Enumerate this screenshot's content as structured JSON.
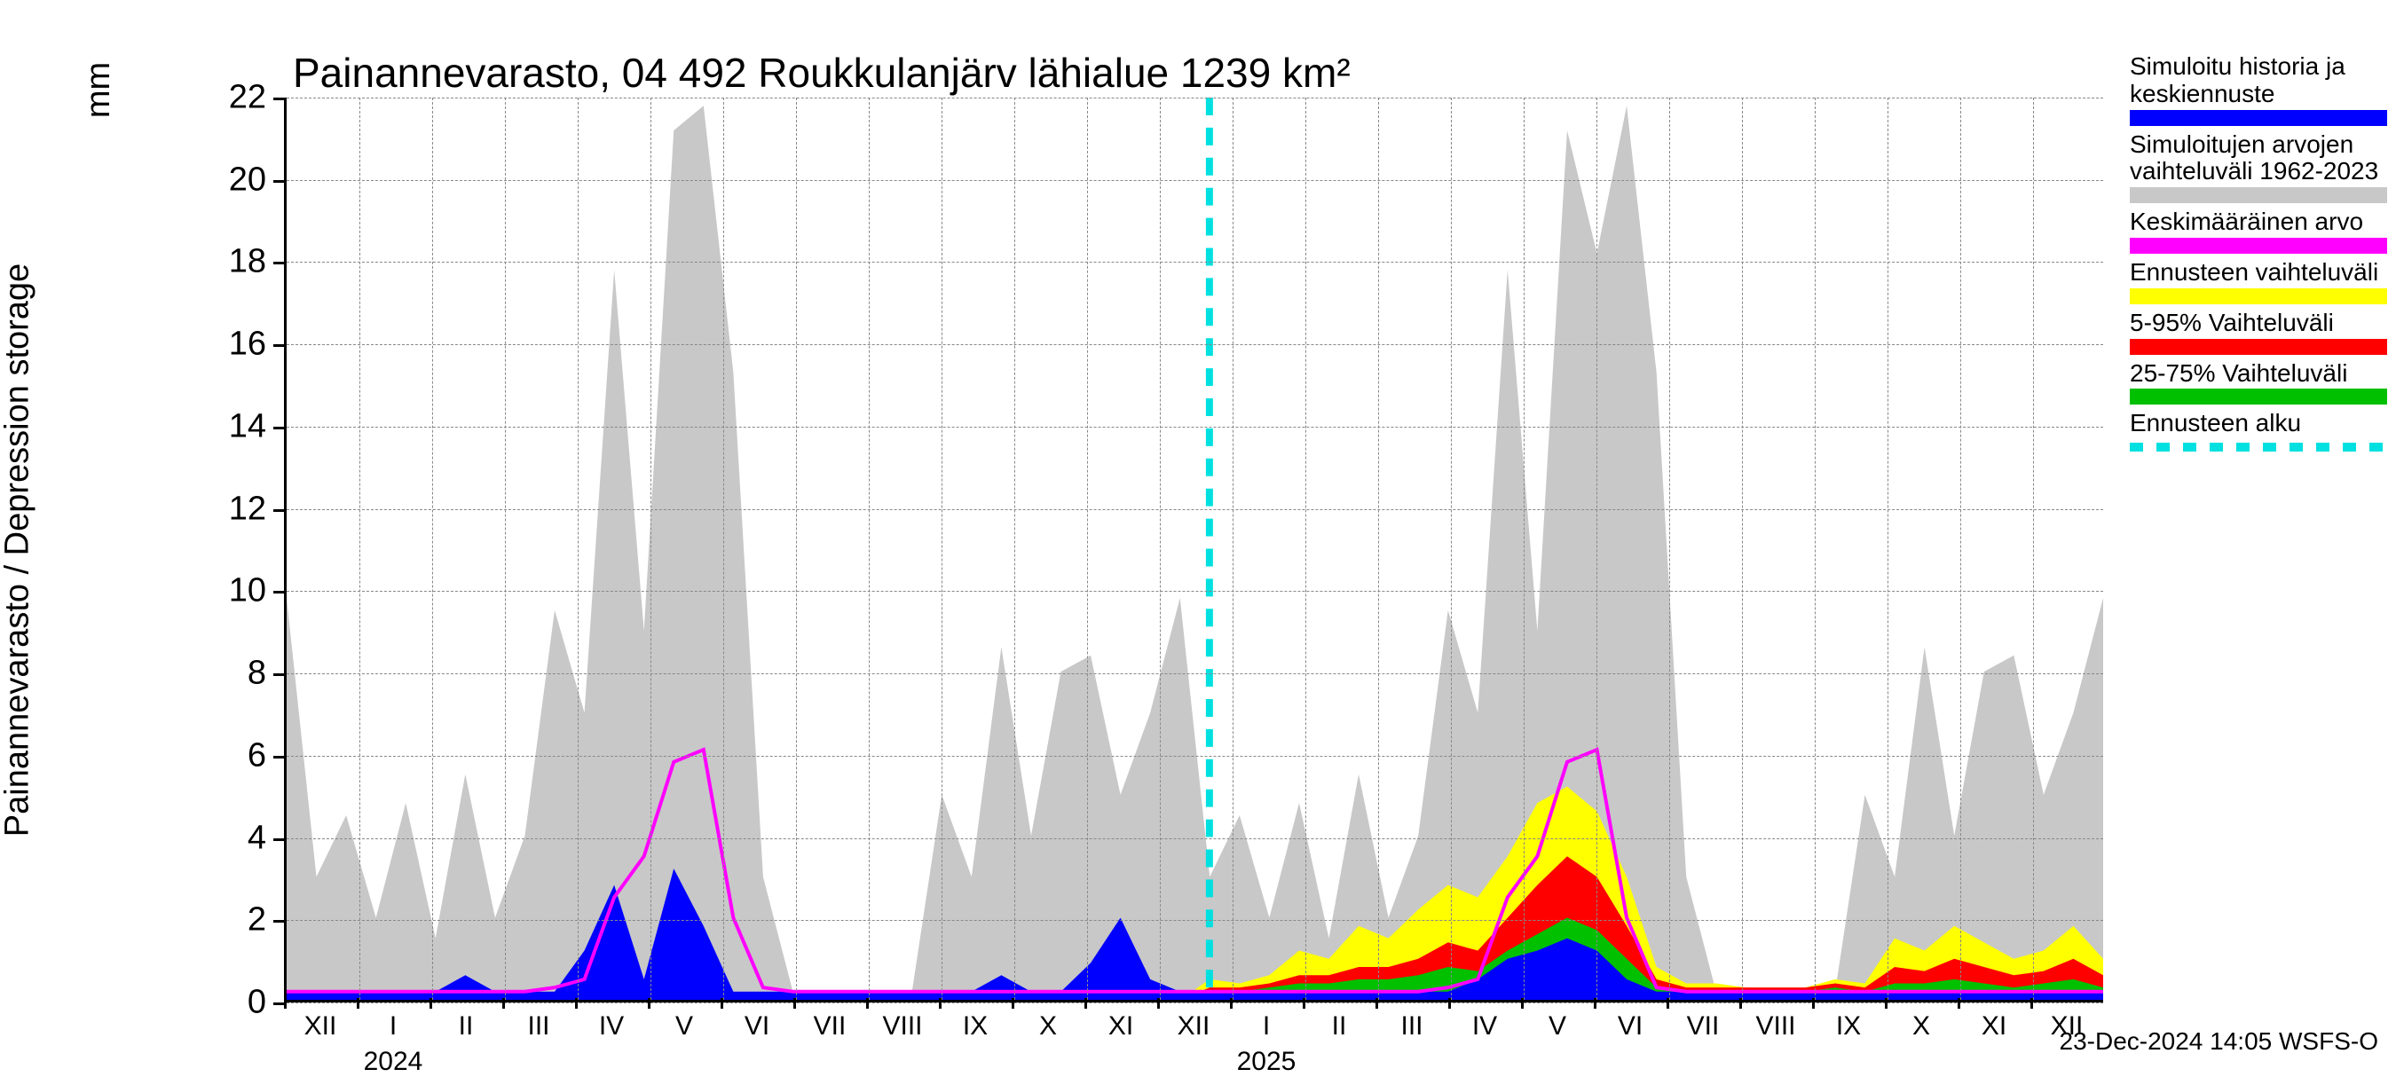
{
  "chart": {
    "type": "area-timeseries",
    "title": "Painannevarasto, 04 492 Roukkulanjärv lähialue 1239 km²",
    "y_axis": {
      "label": "Painannevarasto / Depression storage",
      "unit": "mm",
      "min": 0,
      "max": 22,
      "ticks": [
        0,
        2,
        4,
        6,
        8,
        10,
        12,
        14,
        16,
        18,
        20,
        22
      ],
      "label_fontsize": 38,
      "tick_fontsize": 38
    },
    "x_axis": {
      "months": [
        "XII",
        "I",
        "II",
        "III",
        "IV",
        "V",
        "VI",
        "VII",
        "VIII",
        "IX",
        "X",
        "XI",
        "XII",
        "I",
        "II",
        "III",
        "IV",
        "V",
        "VI",
        "VII",
        "VIII",
        "IX",
        "X",
        "XI",
        "XII"
      ],
      "year_labels": [
        {
          "label": "2024",
          "at_month_index": 1
        },
        {
          "label": "2025",
          "at_month_index": 13
        }
      ],
      "tick_fontsize": 30
    },
    "forecast_start_month_index": 12.7,
    "colors": {
      "historical_range": "#c8c8c8",
      "mean_historical": "#ff00ff",
      "simulated_forecast": "#0000ff",
      "forecast_band_outer": "#ffff00",
      "forecast_band_5_95": "#ff0000",
      "forecast_band_25_75": "#00c000",
      "forecast_start_line": "#00e0e0",
      "grid": "#888888",
      "axis": "#000000",
      "background": "#ffffff",
      "text": "#000000"
    },
    "series": {
      "historical_range_upper": [
        9.8,
        3,
        4.5,
        2,
        4.8,
        1.5,
        5.5,
        2,
        4,
        9.5,
        7,
        17.8,
        9,
        21.2,
        21.8,
        15.3,
        3,
        0.2,
        0.2,
        0.2,
        0.2,
        0.2,
        5,
        3,
        8.6,
        4,
        8,
        8.4,
        5,
        7,
        9.8,
        3,
        4.5,
        2,
        4.8,
        1.5,
        5.5,
        2,
        4,
        9.5,
        7,
        17.8,
        9,
        21.2,
        18.2,
        21.8,
        15.3,
        3,
        0.2,
        0.2,
        0.2,
        0.2,
        0.2,
        5,
        3,
        8.6,
        4,
        8,
        8.4,
        5,
        7,
        9.8
      ],
      "historical_range_lower": [
        0,
        0,
        0,
        0,
        0,
        0,
        0,
        0,
        0,
        0,
        0,
        0,
        0,
        0,
        0,
        0,
        0,
        0,
        0,
        0,
        0,
        0,
        0,
        0,
        0,
        0,
        0,
        0,
        0,
        0,
        0,
        0,
        0,
        0,
        0,
        0,
        0,
        0,
        0,
        0,
        0,
        0,
        0,
        0,
        0,
        0,
        0,
        0,
        0,
        0,
        0,
        0,
        0,
        0,
        0,
        0,
        0,
        0,
        0,
        0,
        0,
        0
      ],
      "mean_historical": [
        0.2,
        0.2,
        0.2,
        0.2,
        0.2,
        0.2,
        0.2,
        0.2,
        0.2,
        0.3,
        0.5,
        2.5,
        3.5,
        5.8,
        6.1,
        2,
        0.3,
        0.2,
        0.2,
        0.2,
        0.2,
        0.2,
        0.2,
        0.2,
        0.2,
        0.2,
        0.2,
        0.2,
        0.2,
        0.2,
        0.2,
        0.2,
        0.2,
        0.2,
        0.2,
        0.2,
        0.2,
        0.2,
        0.2,
        0.3,
        0.5,
        2.5,
        3.5,
        5.8,
        6.1,
        2,
        0.3,
        0.2,
        0.2,
        0.2,
        0.2,
        0.2,
        0.2,
        0.2,
        0.2,
        0.2,
        0.2,
        0.2,
        0.2,
        0.2,
        0.2,
        0.2
      ],
      "simulated": [
        0.2,
        0.2,
        0.2,
        0.2,
        0.2,
        0.2,
        0.6,
        0.2,
        0.2,
        0.2,
        1.2,
        2.8,
        0.5,
        3.2,
        1.8,
        0.2,
        0.2,
        0.2,
        0.2,
        0.2,
        0.2,
        0.2,
        0.2,
        0.2,
        0.6,
        0.2,
        0.2,
        0.9,
        2.0,
        0.5,
        0.2,
        0.2,
        0.2,
        0.2,
        0.2,
        0.2,
        0.2,
        0.2,
        0.2,
        0.2,
        0.5,
        1.0,
        1.2,
        1.5,
        1.2,
        0.5,
        0.2,
        0.2,
        0.2,
        0.2,
        0.2,
        0.2,
        0.2,
        0.2,
        0.2,
        0.2,
        0.2,
        0.2,
        0.2,
        0.2,
        0.2,
        0.2
      ],
      "forecast_outer_upper": [
        0,
        0,
        0,
        0,
        0,
        0,
        0,
        0,
        0,
        0,
        0,
        0,
        0,
        0,
        0,
        0,
        0,
        0,
        0,
        0,
        0,
        0,
        0,
        0,
        0,
        0,
        0,
        0,
        0,
        0,
        0,
        0.5,
        0.4,
        0.6,
        1.2,
        1.0,
        1.8,
        1.5,
        2.2,
        2.8,
        2.5,
        3.5,
        4.8,
        5.2,
        4.6,
        3.0,
        0.8,
        0.4,
        0.4,
        0.3,
        0.3,
        0.3,
        0.5,
        0.4,
        1.5,
        1.2,
        1.8,
        1.4,
        1.0,
        1.2,
        1.8,
        1.0
      ],
      "forecast_5_95_upper": [
        0,
        0,
        0,
        0,
        0,
        0,
        0,
        0,
        0,
        0,
        0,
        0,
        0,
        0,
        0,
        0,
        0,
        0,
        0,
        0,
        0,
        0,
        0,
        0,
        0,
        0,
        0,
        0,
        0,
        0,
        0,
        0.3,
        0.3,
        0.4,
        0.6,
        0.6,
        0.8,
        0.8,
        1.0,
        1.4,
        1.2,
        2.0,
        2.8,
        3.5,
        3.0,
        1.8,
        0.5,
        0.3,
        0.3,
        0.3,
        0.3,
        0.3,
        0.4,
        0.3,
        0.8,
        0.7,
        1.0,
        0.8,
        0.6,
        0.7,
        1.0,
        0.6
      ],
      "forecast_25_75_upper": [
        0,
        0,
        0,
        0,
        0,
        0,
        0,
        0,
        0,
        0,
        0,
        0,
        0,
        0,
        0,
        0,
        0,
        0,
        0,
        0,
        0,
        0,
        0,
        0,
        0,
        0,
        0,
        0,
        0,
        0,
        0,
        0.2,
        0.2,
        0.3,
        0.4,
        0.4,
        0.5,
        0.5,
        0.6,
        0.8,
        0.7,
        1.2,
        1.6,
        2.0,
        1.7,
        1.0,
        0.3,
        0.2,
        0.2,
        0.2,
        0.2,
        0.2,
        0.3,
        0.2,
        0.4,
        0.4,
        0.5,
        0.4,
        0.3,
        0.4,
        0.5,
        0.3
      ]
    },
    "legend": [
      {
        "label": "Simuloitu historia ja keskiennuste",
        "color_key": "simulated_forecast"
      },
      {
        "label": "Simuloitujen arvojen vaihteluväli 1962-2023",
        "color_key": "historical_range"
      },
      {
        "label": "Keskimääräinen arvo",
        "color_key": "mean_historical"
      },
      {
        "label": "Ennusteen vaihteluväli",
        "color_key": "forecast_band_outer"
      },
      {
        "label": "5-95% Vaihteluväli",
        "color_key": "forecast_band_5_95"
      },
      {
        "label": "25-75% Vaihteluväli",
        "color_key": "forecast_band_25_75"
      },
      {
        "label": "Ennusteen alku",
        "color_key": "forecast_start_line",
        "style": "dashed"
      }
    ],
    "footer": "23-Dec-2024 14:05 WSFS-O",
    "title_fontsize": 46,
    "legend_fontsize": 28,
    "footer_fontsize": 28
  }
}
